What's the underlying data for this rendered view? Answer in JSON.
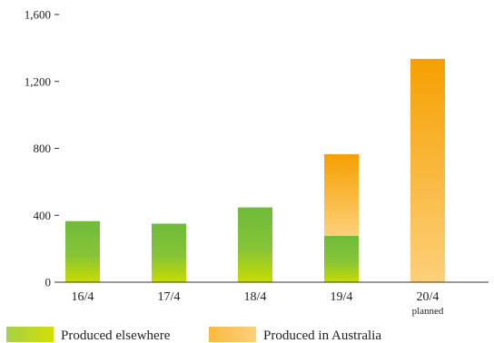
{
  "chart_data": {
    "type": "bar",
    "stacked": true,
    "categories": [
      "16/4",
      "17/4",
      "18/4",
      "19/4",
      "20/4"
    ],
    "category_sublabels": [
      "",
      "",
      "",
      "",
      "planned"
    ],
    "series": [
      {
        "name": "Produced elsewhere",
        "values": [
          365,
          350,
          447,
          278,
          0
        ],
        "color": "#7cc040"
      },
      {
        "name": "Produced in Australia",
        "values": [
          0,
          0,
          0,
          487,
          1335
        ],
        "color": "#f5a000"
      }
    ],
    "y_ticks": [
      "0",
      "400",
      "800",
      "1,200",
      "1,600"
    ],
    "ylim": [
      0,
      1600
    ],
    "grid": false,
    "legend": "bottom",
    "title": "",
    "xlabel": "",
    "ylabel": ""
  }
}
